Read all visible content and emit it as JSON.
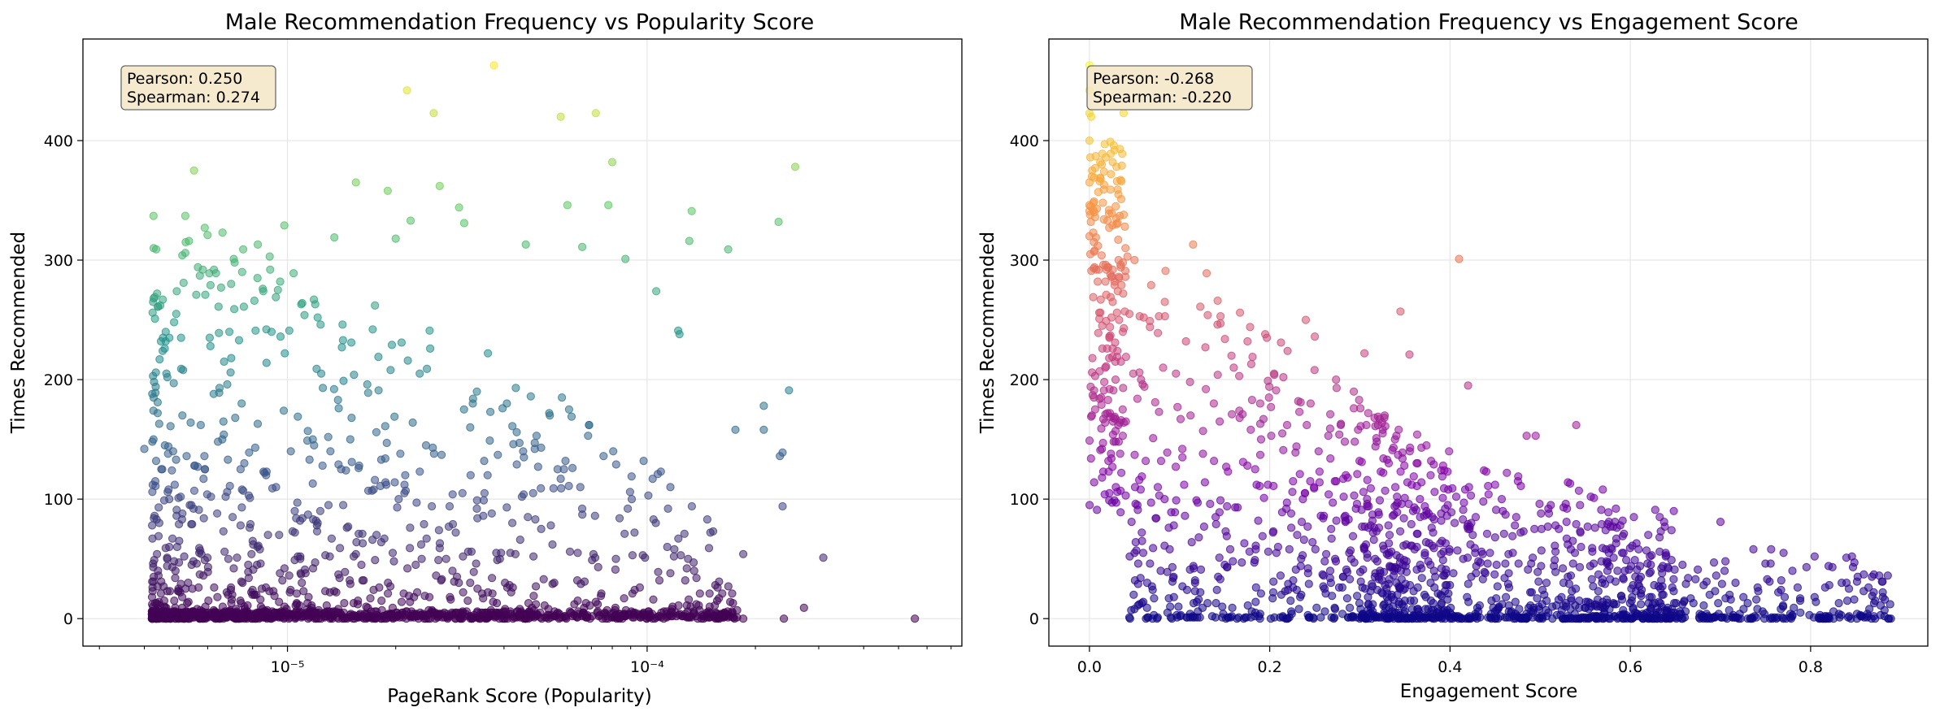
{
  "chart_data": [
    {
      "type": "scatter",
      "title": "Male Recommendation Frequency vs Popularity Score",
      "xlabel": "PageRank Score (Popularity)",
      "ylabel": "Times Recommended",
      "xscale": "log",
      "xlim": [
        2.7e-06,
        0.00075
      ],
      "ylim": [
        -23,
        485
      ],
      "xticks": [
        {
          "value": 1e-05,
          "label": "10⁻⁵"
        },
        {
          "value": 0.0001,
          "label": "10⁻⁴"
        }
      ],
      "yticks": [
        0,
        100,
        200,
        300,
        400
      ],
      "grid": true,
      "colormap": "viridis",
      "annotation": {
        "pearson": "Pearson: 0.250",
        "spearman": "Spearman: 0.274",
        "placement": "top-left"
      },
      "highlight_points": [
        {
          "x": 3.75e-05,
          "y": 463
        },
        {
          "x": 2.15e-05,
          "y": 442
        },
        {
          "x": 2.55e-05,
          "y": 423
        },
        {
          "x": 5.75e-05,
          "y": 420
        },
        {
          "x": 7.2e-05,
          "y": 423
        },
        {
          "x": 5.5e-06,
          "y": 375
        },
        {
          "x": 1.55e-05,
          "y": 365
        },
        {
          "x": 1.9e-05,
          "y": 358
        },
        {
          "x": 2.65e-05,
          "y": 362
        },
        {
          "x": 8e-05,
          "y": 382
        },
        {
          "x": 0.000258,
          "y": 378
        },
        {
          "x": 3e-05,
          "y": 344
        },
        {
          "x": 6e-05,
          "y": 346
        },
        {
          "x": 7.8e-05,
          "y": 346
        },
        {
          "x": 0.000133,
          "y": 341
        },
        {
          "x": 0.000232,
          "y": 332
        },
        {
          "x": 5.2e-06,
          "y": 337
        },
        {
          "x": 6.6e-06,
          "y": 323
        },
        {
          "x": 9.8e-06,
          "y": 329
        },
        {
          "x": 2.2e-05,
          "y": 333
        },
        {
          "x": 3.1e-05,
          "y": 331
        },
        {
          "x": 1.35e-05,
          "y": 319
        },
        {
          "x": 4.6e-05,
          "y": 313
        },
        {
          "x": 0.000168,
          "y": 309
        },
        {
          "x": 0.000131,
          "y": 316
        },
        {
          "x": 5.2e-06,
          "y": 306
        },
        {
          "x": 2e-05,
          "y": 318
        },
        {
          "x": 6.6e-05,
          "y": 311
        },
        {
          "x": 4.5e-06,
          "y": 224
        },
        {
          "x": 4e-06,
          "y": 142
        },
        {
          "x": 8.7e-05,
          "y": 301
        },
        {
          "x": 0.000106,
          "y": 274
        },
        {
          "x": 0.000122,
          "y": 241
        },
        {
          "x": 0.000123,
          "y": 238
        },
        {
          "x": 0.000211,
          "y": 178
        },
        {
          "x": 0.000176,
          "y": 158
        },
        {
          "x": 0.000211,
          "y": 158
        },
        {
          "x": 0.000248,
          "y": 191
        },
        {
          "x": 0.000238,
          "y": 139
        },
        {
          "x": 0.000234,
          "y": 136
        },
        {
          "x": 0.000238,
          "y": 94
        },
        {
          "x": 0.000309,
          "y": 51
        },
        {
          "x": 0.000185,
          "y": 54
        },
        {
          "x": 0.000147,
          "y": 83
        },
        {
          "x": 0.000127,
          "y": 71
        },
        {
          "x": 0.000555,
          "y": 0
        },
        {
          "x": 0.000273,
          "y": 9
        },
        {
          "x": 0.00024,
          "y": 0
        },
        {
          "x": 0.000185,
          "y": 0
        },
        {
          "x": 0.000137,
          "y": 12
        },
        {
          "x": 0.000129,
          "y": 11
        }
      ]
    },
    {
      "type": "scatter",
      "title": "Male Recommendation Frequency vs Engagement Score",
      "xlabel": "Engagement Score",
      "ylabel": "Times Recommended",
      "xscale": "linear",
      "xlim": [
        -0.045,
        0.93
      ],
      "ylim": [
        -23,
        485
      ],
      "xticks": [
        {
          "value": 0,
          "label": "0.0"
        },
        {
          "value": 0.2,
          "label": "0.2"
        },
        {
          "value": 0.4,
          "label": "0.4"
        },
        {
          "value": 0.6,
          "label": "0.6"
        },
        {
          "value": 0.8,
          "label": "0.8"
        }
      ],
      "yticks": [
        0,
        100,
        200,
        300,
        400
      ],
      "grid": true,
      "colormap": "plasma",
      "annotation": {
        "pearson": "Pearson: -0.268",
        "spearman": "Spearman: -0.220",
        "placement": "top-left"
      },
      "highlight_points": [
        {
          "x": 0.0,
          "y": 463
        },
        {
          "x": 0.0,
          "y": 442
        },
        {
          "x": 0.0,
          "y": 423
        },
        {
          "x": 0.038,
          "y": 423
        },
        {
          "x": 0.002,
          "y": 420
        },
        {
          "x": 0.0,
          "y": 400
        },
        {
          "x": 0.003,
          "y": 375
        },
        {
          "x": 0.012,
          "y": 382
        },
        {
          "x": 0.03,
          "y": 378
        },
        {
          "x": 0.0,
          "y": 365
        },
        {
          "x": 0.0,
          "y": 346
        },
        {
          "x": 0.0,
          "y": 341
        },
        {
          "x": 0.02,
          "y": 333
        },
        {
          "x": 0.03,
          "y": 330
        },
        {
          "x": 0.0,
          "y": 320
        },
        {
          "x": 0.04,
          "y": 310
        },
        {
          "x": 0.05,
          "y": 300
        },
        {
          "x": 0.115,
          "y": 313
        },
        {
          "x": 0.41,
          "y": 301
        },
        {
          "x": 0.13,
          "y": 289
        },
        {
          "x": 0.345,
          "y": 257
        },
        {
          "x": 0.24,
          "y": 250
        },
        {
          "x": 0.25,
          "y": 236
        },
        {
          "x": 0.195,
          "y": 238
        },
        {
          "x": 0.305,
          "y": 222
        },
        {
          "x": 0.355,
          "y": 221
        },
        {
          "x": 0.42,
          "y": 195
        },
        {
          "x": 0.485,
          "y": 153
        },
        {
          "x": 0.495,
          "y": 153
        },
        {
          "x": 0.54,
          "y": 162
        },
        {
          "x": 0.7,
          "y": 81
        },
        {
          "x": 0.77,
          "y": 55
        },
        {
          "x": 0.82,
          "y": 44
        },
        {
          "x": 0.6,
          "y": 0
        },
        {
          "x": 0.88,
          "y": 22
        },
        {
          "x": 0.05,
          "y": 8
        },
        {
          "x": 0.07,
          "y": 0
        },
        {
          "x": 0.3,
          "y": 0
        },
        {
          "x": 0.45,
          "y": 0
        }
      ]
    }
  ]
}
